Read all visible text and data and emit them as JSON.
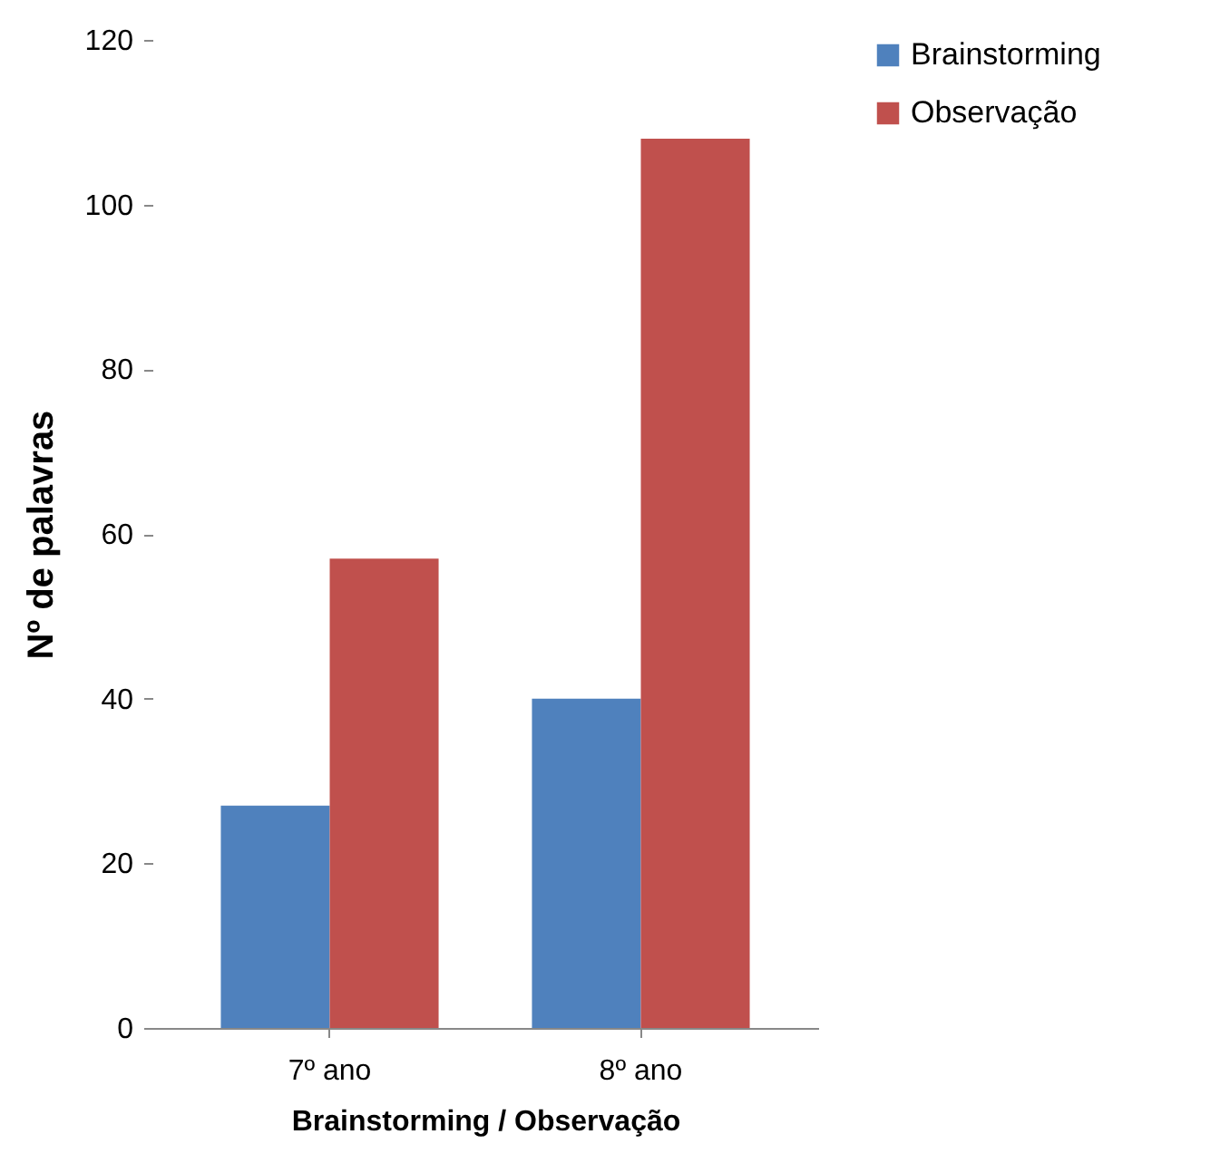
{
  "chart_data": {
    "type": "bar",
    "xlabel": "Brainstorming / Observação",
    "ylabel": "Nº de palavras",
    "categories": [
      "7º ano",
      "8º ano"
    ],
    "series": [
      {
        "name": "Brainstorming",
        "color": "#4f81bd",
        "values": [
          27,
          40
        ]
      },
      {
        "name": "Observação",
        "color": "#c0504d",
        "values": [
          57,
          108
        ]
      }
    ],
    "ylim": [
      0,
      120
    ],
    "yticks": [
      0,
      20,
      40,
      60,
      80,
      100,
      120
    ],
    "grid": false,
    "legend": "right"
  }
}
